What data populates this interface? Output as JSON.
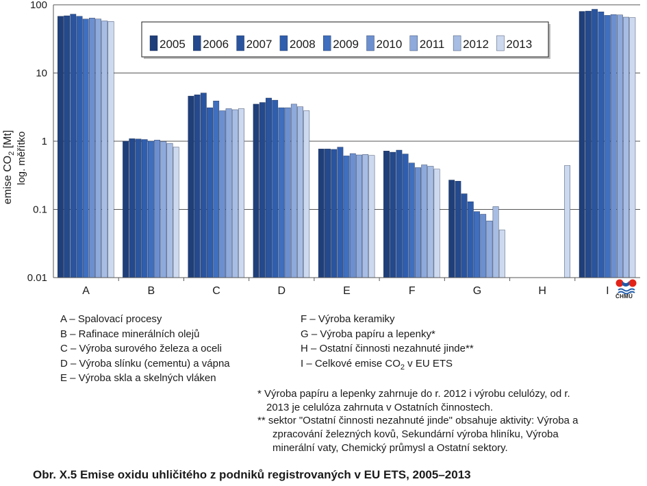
{
  "chart_data": {
    "type": "bar",
    "scale": "log",
    "ylim": [
      0.01,
      100
    ],
    "yticks": [
      "100",
      "10",
      "1",
      "0.1",
      "0.01"
    ],
    "ylabel_line1": "emise  CO",
    "ylabel_sub": "2",
    "ylabel_unit": " [Mt]",
    "ylabel_line2": "log. měřítko",
    "grid": true,
    "legend_position": "top-center",
    "categories": [
      "A",
      "B",
      "C",
      "D",
      "E",
      "F",
      "G",
      "H",
      "I"
    ],
    "series": [
      {
        "name": "2005",
        "color": "#1f3f7a",
        "values": [
          68,
          1.0,
          4.6,
          3.5,
          0.77,
          0.72,
          0.27,
          null,
          80
        ]
      },
      {
        "name": "2006",
        "color": "#24498c",
        "values": [
          69,
          1.09,
          4.8,
          3.7,
          0.77,
          0.69,
          0.26,
          null,
          81
        ]
      },
      {
        "name": "2007",
        "color": "#2a549e",
        "values": [
          73,
          1.08,
          5.1,
          4.3,
          0.76,
          0.74,
          0.17,
          null,
          86
        ]
      },
      {
        "name": "2008",
        "color": "#305eae",
        "values": [
          68,
          1.06,
          3.1,
          4.0,
          0.82,
          0.65,
          0.13,
          null,
          79
        ]
      },
      {
        "name": "2009",
        "color": "#3f6fbe",
        "values": [
          62,
          1.0,
          3.9,
          3.1,
          0.61,
          0.48,
          0.093,
          null,
          70
        ]
      },
      {
        "name": "2010",
        "color": "#6c8fcf",
        "values": [
          64,
          1.04,
          2.8,
          3.1,
          0.66,
          0.41,
          0.085,
          null,
          72
        ]
      },
      {
        "name": "2011",
        "color": "#8ea9db",
        "values": [
          62,
          0.99,
          3.0,
          3.5,
          0.63,
          0.45,
          0.068,
          null,
          71
        ]
      },
      {
        "name": "2012",
        "color": "#a8bde3",
        "values": [
          58,
          0.93,
          2.9,
          3.2,
          0.64,
          0.43,
          0.11,
          null,
          66
        ]
      },
      {
        "name": "2013",
        "color": "#cdd9ef",
        "values": [
          57,
          0.82,
          3.0,
          2.8,
          0.62,
          0.39,
          0.05,
          0.44,
          65
        ]
      }
    ]
  },
  "legend_a": "A – Spalovací procesy",
  "legend_b": "B – Rafinace minerálních olejů",
  "legend_c": "C – Výroba surového železa a oceli",
  "legend_d": "D – Výroba slínku (cementu) a vápna",
  "legend_e": "E – Výroba skla a skelných vláken",
  "legend_f": "F – Výroba keramiky",
  "legend_g": "G – Výroba papíru a lepenky*",
  "legend_h": "H – Ostatní činnosti nezahnuté jinde**",
  "legend_i_pre": "I – Celkové emise CO",
  "legend_i_sub": "2",
  "legend_i_post": " v EU ETS",
  "footnote1_line1": "* Výroba papíru a lepenky zahrnuje do r. 2012 i výrobu celulózy, od r.",
  "footnote1_line2": "2013 je celulóza zahrnuta v Ostatních činnostech.",
  "footnote2_line1": "** sektor \"Ostatní činnosti  nezahnuté jinde\" obsahuje  aktivity: Výroba a",
  "footnote2_line2": "zpracování železných kovů, Sekundární výroba hliníku, Výroba",
  "footnote2_line3": "minerální vaty, Chemický průmysl a Ostatní sektory.",
  "caption": "Obr. X.5  Emise oxidu uhličitého z podniků registrovaných v EU ETS, 2005–2013",
  "logo_text": "ČHMÚ",
  "logo_colors": {
    "red": "#e2231a",
    "blue": "#1e5aa8"
  }
}
